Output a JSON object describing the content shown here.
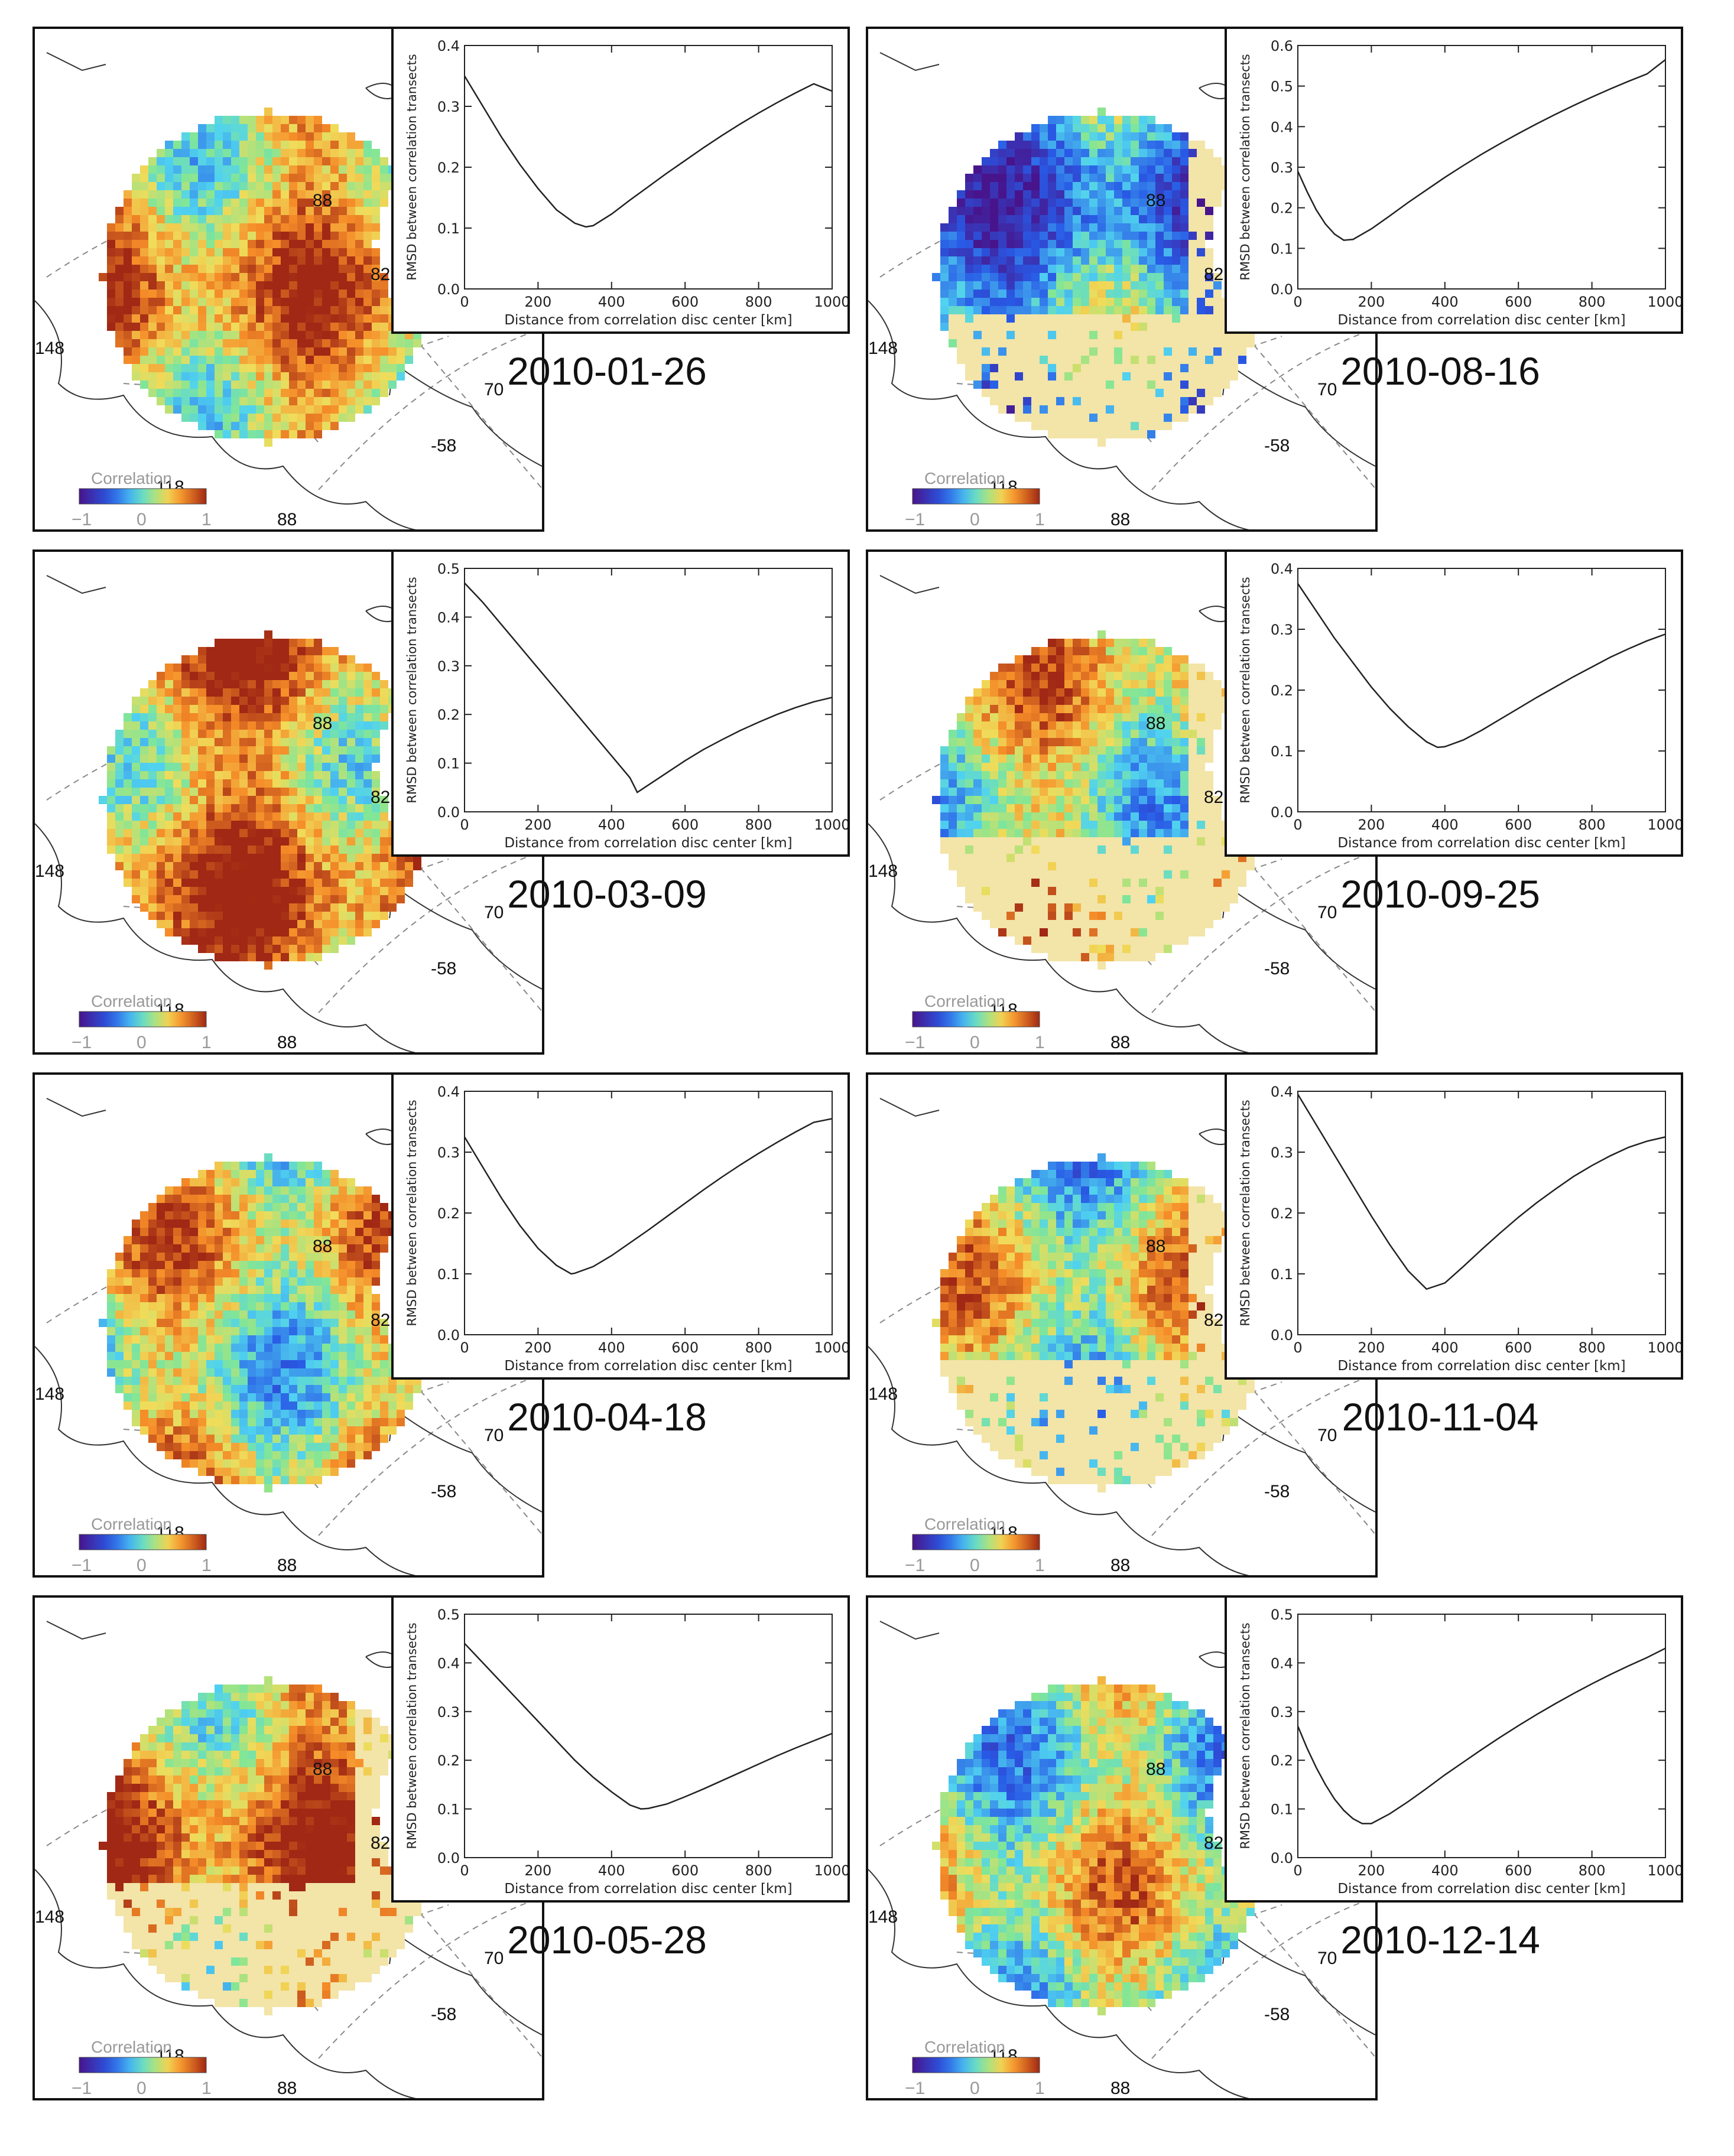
{
  "figure": {
    "panels": [
      {
        "date": "2010-01-26"
      },
      {
        "date": "2010-08-16"
      },
      {
        "date": "2010-03-09"
      },
      {
        "date": "2010-09-25"
      },
      {
        "date": "2010-04-18"
      },
      {
        "date": "2010-11-04"
      },
      {
        "date": "2010-05-28"
      },
      {
        "date": "2010-12-14"
      }
    ],
    "map_labels": {
      "lat88": "88",
      "lat82": "82",
      "lat70": "70",
      "lon148": "148",
      "lon118": "118",
      "lon88": "88",
      "lon58": "-58"
    },
    "colorbar": {
      "title": "Correlation",
      "ticks": [
        "−1",
        "0",
        "1"
      ]
    },
    "colors": {
      "accent": "#c0c0c0"
    }
  },
  "chart_data": [
    {
      "type": "line",
      "date": "2010-01-26",
      "x": [
        0,
        50,
        100,
        150,
        200,
        250,
        300,
        330,
        350,
        400,
        450,
        500,
        550,
        600,
        650,
        700,
        750,
        800,
        850,
        900,
        950,
        1000
      ],
      "y": [
        0.35,
        0.3,
        0.25,
        0.205,
        0.165,
        0.13,
        0.108,
        0.102,
        0.104,
        0.123,
        0.146,
        0.168,
        0.19,
        0.211,
        0.232,
        0.252,
        0.271,
        0.289,
        0.306,
        0.322,
        0.337,
        0.325
      ],
      "title": "",
      "xlabel": "Distance from correlation disc center [km]",
      "ylabel": "RMSD between correlation transects",
      "xlim": [
        0,
        1000
      ],
      "ylim": [
        0,
        0.4
      ],
      "yticks": [
        "0.0",
        "0.1",
        "0.2",
        "0.3",
        "0.4"
      ],
      "xticks": [
        "0",
        "200",
        "400",
        "600",
        "800",
        "1000"
      ]
    },
    {
      "type": "line",
      "date": "2010-08-16",
      "x": [
        0,
        25,
        50,
        75,
        100,
        125,
        150,
        200,
        250,
        300,
        350,
        400,
        450,
        500,
        550,
        600,
        650,
        700,
        750,
        800,
        850,
        900,
        950,
        1000
      ],
      "y": [
        0.29,
        0.24,
        0.195,
        0.16,
        0.135,
        0.12,
        0.122,
        0.148,
        0.18,
        0.213,
        0.244,
        0.275,
        0.304,
        0.332,
        0.358,
        0.383,
        0.407,
        0.43,
        0.452,
        0.473,
        0.493,
        0.512,
        0.53,
        0.565
      ],
      "title": "",
      "xlabel": "Distance from correlation disc center [km]",
      "ylabel": "RMSD between correlation transects",
      "xlim": [
        0,
        1000
      ],
      "ylim": [
        0,
        0.6
      ],
      "yticks": [
        "0.0",
        "0.1",
        "0.2",
        "0.3",
        "0.4",
        "0.5",
        "0.6"
      ],
      "xticks": [
        "0",
        "200",
        "400",
        "600",
        "800",
        "1000"
      ]
    },
    {
      "type": "line",
      "date": "2010-03-09",
      "x": [
        0,
        50,
        100,
        150,
        200,
        250,
        300,
        350,
        400,
        450,
        470,
        500,
        550,
        600,
        650,
        700,
        750,
        800,
        850,
        900,
        950,
        1000
      ],
      "y": [
        0.47,
        0.43,
        0.385,
        0.34,
        0.295,
        0.25,
        0.205,
        0.16,
        0.115,
        0.07,
        0.04,
        0.055,
        0.08,
        0.105,
        0.128,
        0.148,
        0.167,
        0.184,
        0.2,
        0.214,
        0.226,
        0.235
      ],
      "title": "",
      "xlabel": "Distance from correlation disc center [km]",
      "ylabel": "RMSD between correlation transects",
      "xlim": [
        0,
        1000
      ],
      "ylim": [
        0,
        0.5
      ],
      "yticks": [
        "0.0",
        "0.1",
        "0.2",
        "0.3",
        "0.4",
        "0.5"
      ],
      "xticks": [
        "0",
        "200",
        "400",
        "600",
        "800",
        "1000"
      ]
    },
    {
      "type": "line",
      "date": "2010-09-25",
      "x": [
        0,
        50,
        100,
        150,
        200,
        250,
        300,
        350,
        380,
        400,
        450,
        500,
        550,
        600,
        650,
        700,
        750,
        800,
        850,
        900,
        950,
        1000
      ],
      "y": [
        0.375,
        0.33,
        0.285,
        0.245,
        0.205,
        0.17,
        0.14,
        0.115,
        0.106,
        0.107,
        0.118,
        0.134,
        0.152,
        0.17,
        0.188,
        0.205,
        0.222,
        0.238,
        0.254,
        0.268,
        0.281,
        0.292
      ],
      "title": "",
      "xlabel": "Distance from correlation disc center [km]",
      "ylabel": "RMSD between correlation transects",
      "xlim": [
        0,
        1000
      ],
      "ylim": [
        0,
        0.4
      ],
      "yticks": [
        "0.0",
        "0.1",
        "0.2",
        "0.3",
        "0.4"
      ],
      "xticks": [
        "0",
        "200",
        "400",
        "600",
        "800",
        "1000"
      ]
    },
    {
      "type": "line",
      "date": "2010-04-18",
      "x": [
        0,
        50,
        100,
        150,
        200,
        250,
        290,
        300,
        350,
        400,
        450,
        500,
        550,
        600,
        650,
        700,
        750,
        800,
        850,
        900,
        950,
        1000
      ],
      "y": [
        0.325,
        0.275,
        0.225,
        0.18,
        0.142,
        0.114,
        0.1,
        0.101,
        0.112,
        0.13,
        0.151,
        0.172,
        0.194,
        0.216,
        0.238,
        0.259,
        0.279,
        0.298,
        0.316,
        0.333,
        0.349,
        0.355
      ],
      "title": "",
      "xlabel": "Distance from correlation disc center [km]",
      "ylabel": "RMSD between correlation transects",
      "xlim": [
        0,
        1000
      ],
      "ylim": [
        0,
        0.4
      ],
      "yticks": [
        "0.0",
        "0.1",
        "0.2",
        "0.3",
        "0.4"
      ],
      "xticks": [
        "0",
        "200",
        "400",
        "600",
        "800",
        "1000"
      ]
    },
    {
      "type": "line",
      "date": "2010-11-04",
      "x": [
        0,
        50,
        100,
        150,
        200,
        250,
        300,
        350,
        400,
        450,
        500,
        550,
        600,
        650,
        700,
        750,
        800,
        850,
        900,
        950,
        1000
      ],
      "y": [
        0.395,
        0.345,
        0.295,
        0.245,
        0.195,
        0.148,
        0.105,
        0.075,
        0.085,
        0.112,
        0.14,
        0.167,
        0.193,
        0.217,
        0.239,
        0.26,
        0.278,
        0.294,
        0.308,
        0.318,
        0.325
      ],
      "title": "",
      "xlabel": "Distance from correlation disc center [km]",
      "ylabel": "RMSD between correlation transects",
      "xlim": [
        0,
        1000
      ],
      "ylim": [
        0,
        0.4
      ],
      "yticks": [
        "0.0",
        "0.1",
        "0.2",
        "0.3",
        "0.4"
      ],
      "xticks": [
        "0",
        "200",
        "400",
        "600",
        "800",
        "1000"
      ]
    },
    {
      "type": "line",
      "date": "2010-05-28",
      "x": [
        0,
        50,
        100,
        150,
        200,
        250,
        300,
        350,
        400,
        450,
        480,
        500,
        550,
        600,
        650,
        700,
        750,
        800,
        850,
        900,
        950,
        1000
      ],
      "y": [
        0.44,
        0.4,
        0.36,
        0.32,
        0.28,
        0.24,
        0.2,
        0.165,
        0.135,
        0.108,
        0.1,
        0.101,
        0.11,
        0.125,
        0.141,
        0.158,
        0.175,
        0.192,
        0.209,
        0.225,
        0.24,
        0.255
      ],
      "title": "",
      "xlabel": "Distance from correlation disc center [km]",
      "ylabel": "RMSD between correlation transects",
      "xlim": [
        0,
        1000
      ],
      "ylim": [
        0,
        0.5
      ],
      "yticks": [
        "0.0",
        "0.1",
        "0.2",
        "0.3",
        "0.4",
        "0.5"
      ],
      "xticks": [
        "0",
        "200",
        "400",
        "600",
        "800",
        "1000"
      ]
    },
    {
      "type": "line",
      "date": "2010-12-14",
      "x": [
        0,
        25,
        50,
        75,
        100,
        125,
        150,
        175,
        200,
        250,
        300,
        350,
        400,
        450,
        500,
        550,
        600,
        650,
        700,
        750,
        800,
        850,
        900,
        950,
        1000
      ],
      "y": [
        0.27,
        0.225,
        0.185,
        0.15,
        0.12,
        0.097,
        0.08,
        0.07,
        0.07,
        0.09,
        0.115,
        0.142,
        0.17,
        0.196,
        0.222,
        0.247,
        0.271,
        0.294,
        0.316,
        0.337,
        0.357,
        0.376,
        0.394,
        0.411,
        0.43
      ],
      "title": "",
      "xlabel": "Distance from correlation disc center [km]",
      "ylabel": "RMSD between correlation transects",
      "xlim": [
        0,
        1000
      ],
      "ylim": [
        0,
        0.5
      ],
      "yticks": [
        "0.0",
        "0.1",
        "0.2",
        "0.3",
        "0.4",
        "0.5"
      ],
      "xticks": [
        "0",
        "200",
        "400",
        "600",
        "800",
        "1000"
      ]
    }
  ]
}
